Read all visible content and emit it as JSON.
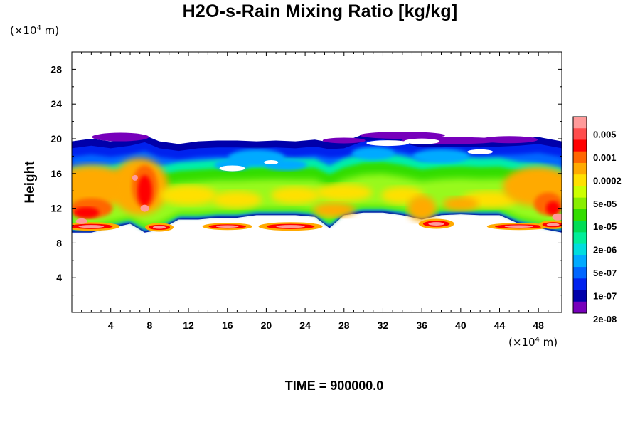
{
  "chart_data": {
    "type": "heatmap",
    "title": "H2O-s-Rain Mixing Ratio [kg/kg]",
    "ylabel": "Height",
    "xlabel": "",
    "x_unit_prefix": "(×10",
    "x_unit_exp": "4",
    "x_unit_suffix": " m)",
    "y_unit_prefix": "(×10",
    "y_unit_exp": "4",
    "y_unit_suffix": " m)",
    "xlim": [
      0,
      50.4
    ],
    "ylim": [
      0,
      30
    ],
    "xticks": [
      "4",
      "8",
      "12",
      "16",
      "20",
      "24",
      "28",
      "32",
      "36",
      "40",
      "44",
      "48"
    ],
    "yticks": [
      "4",
      "8",
      "12",
      "16",
      "20",
      "24",
      "28"
    ],
    "colorbar": {
      "labels": [
        "0.005",
        "0.001",
        "0.0002",
        "5e-05",
        "1e-05",
        "2e-06",
        "5e-07",
        "1e-07",
        "2e-08"
      ],
      "colors": [
        "#ff9a9a",
        "#ff4d4d",
        "#ff0000",
        "#ff6600",
        "#ffaa00",
        "#ffe000",
        "#ccff00",
        "#88ee00",
        "#33dd00",
        "#00dd55",
        "#00ee99",
        "#00dddd",
        "#00aaff",
        "#0066ff",
        "#0022ee",
        "#0000aa",
        "#7700bb"
      ]
    },
    "field": {
      "description_layer_heights_bottom_top": {
        "x": [
          0,
          2,
          4,
          6,
          7.5,
          9,
          11,
          13,
          15,
          17,
          19,
          21,
          23,
          25,
          26.5,
          28,
          30,
          32,
          34,
          36,
          38,
          40,
          42,
          44,
          46,
          48,
          50.4
        ],
        "bottom": [
          9.5,
          9.5,
          10,
          10.5,
          9.5,
          9.8,
          11,
          11,
          11.2,
          11.2,
          11.5,
          11.5,
          11.5,
          11.3,
          10,
          11.5,
          11.8,
          11.8,
          11.5,
          11,
          11.5,
          11.6,
          11.5,
          11.5,
          10.5,
          10,
          9.5
        ],
        "top": [
          19.5,
          19.8,
          19.5,
          19.8,
          20.2,
          19.5,
          19.2,
          19.5,
          19.6,
          19.6,
          19.5,
          19.6,
          19.5,
          19.7,
          19.4,
          19.5,
          20.3,
          20.5,
          20.1,
          19.6,
          19.6,
          19.7,
          19.6,
          19.7,
          19.8,
          20,
          19.5
        ]
      }
    }
  },
  "footer": {
    "time_label": "TIME = 900000.0"
  }
}
